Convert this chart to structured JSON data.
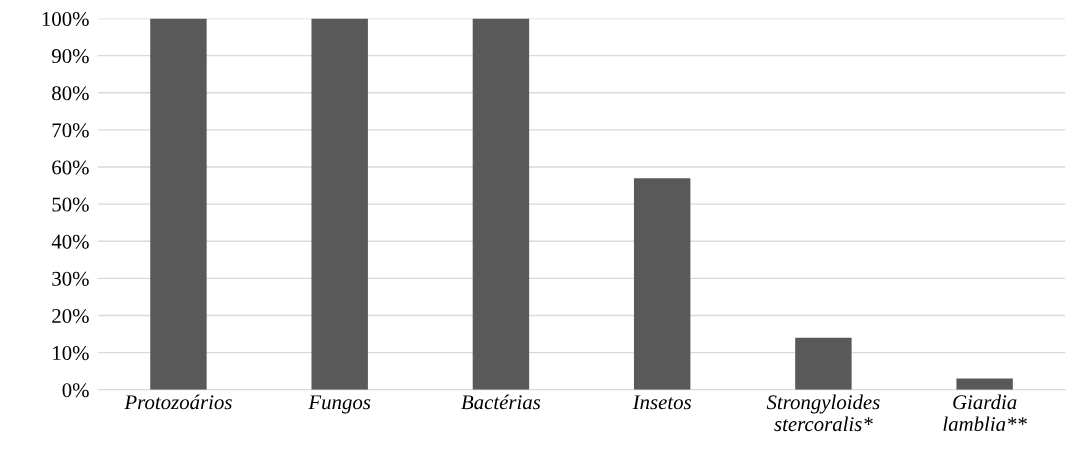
{
  "chart_data": {
    "type": "bar",
    "categories": [
      "Protozoários",
      "Fungos",
      "Bactérias",
      "Insetos",
      "Strongyloides\nstercoralis*",
      "Giardia\nlamblia**"
    ],
    "values": [
      100,
      100,
      100,
      57,
      14,
      3
    ],
    "color": "#595959",
    "ylim": [
      0,
      100
    ],
    "yticks": [
      {
        "value": 0,
        "label": "0%"
      },
      {
        "value": 10,
        "label": "10%"
      },
      {
        "value": 20,
        "label": "20%"
      },
      {
        "value": 30,
        "label": "30%"
      },
      {
        "value": 40,
        "label": "40%"
      },
      {
        "value": 50,
        "label": "50%"
      },
      {
        "value": 60,
        "label": "60%"
      },
      {
        "value": 70,
        "label": "70%"
      },
      {
        "value": 80,
        "label": "80%"
      },
      {
        "value": 90,
        "label": "90%"
      },
      {
        "value": 100,
        "label": "100%"
      }
    ],
    "grid": "y"
  }
}
